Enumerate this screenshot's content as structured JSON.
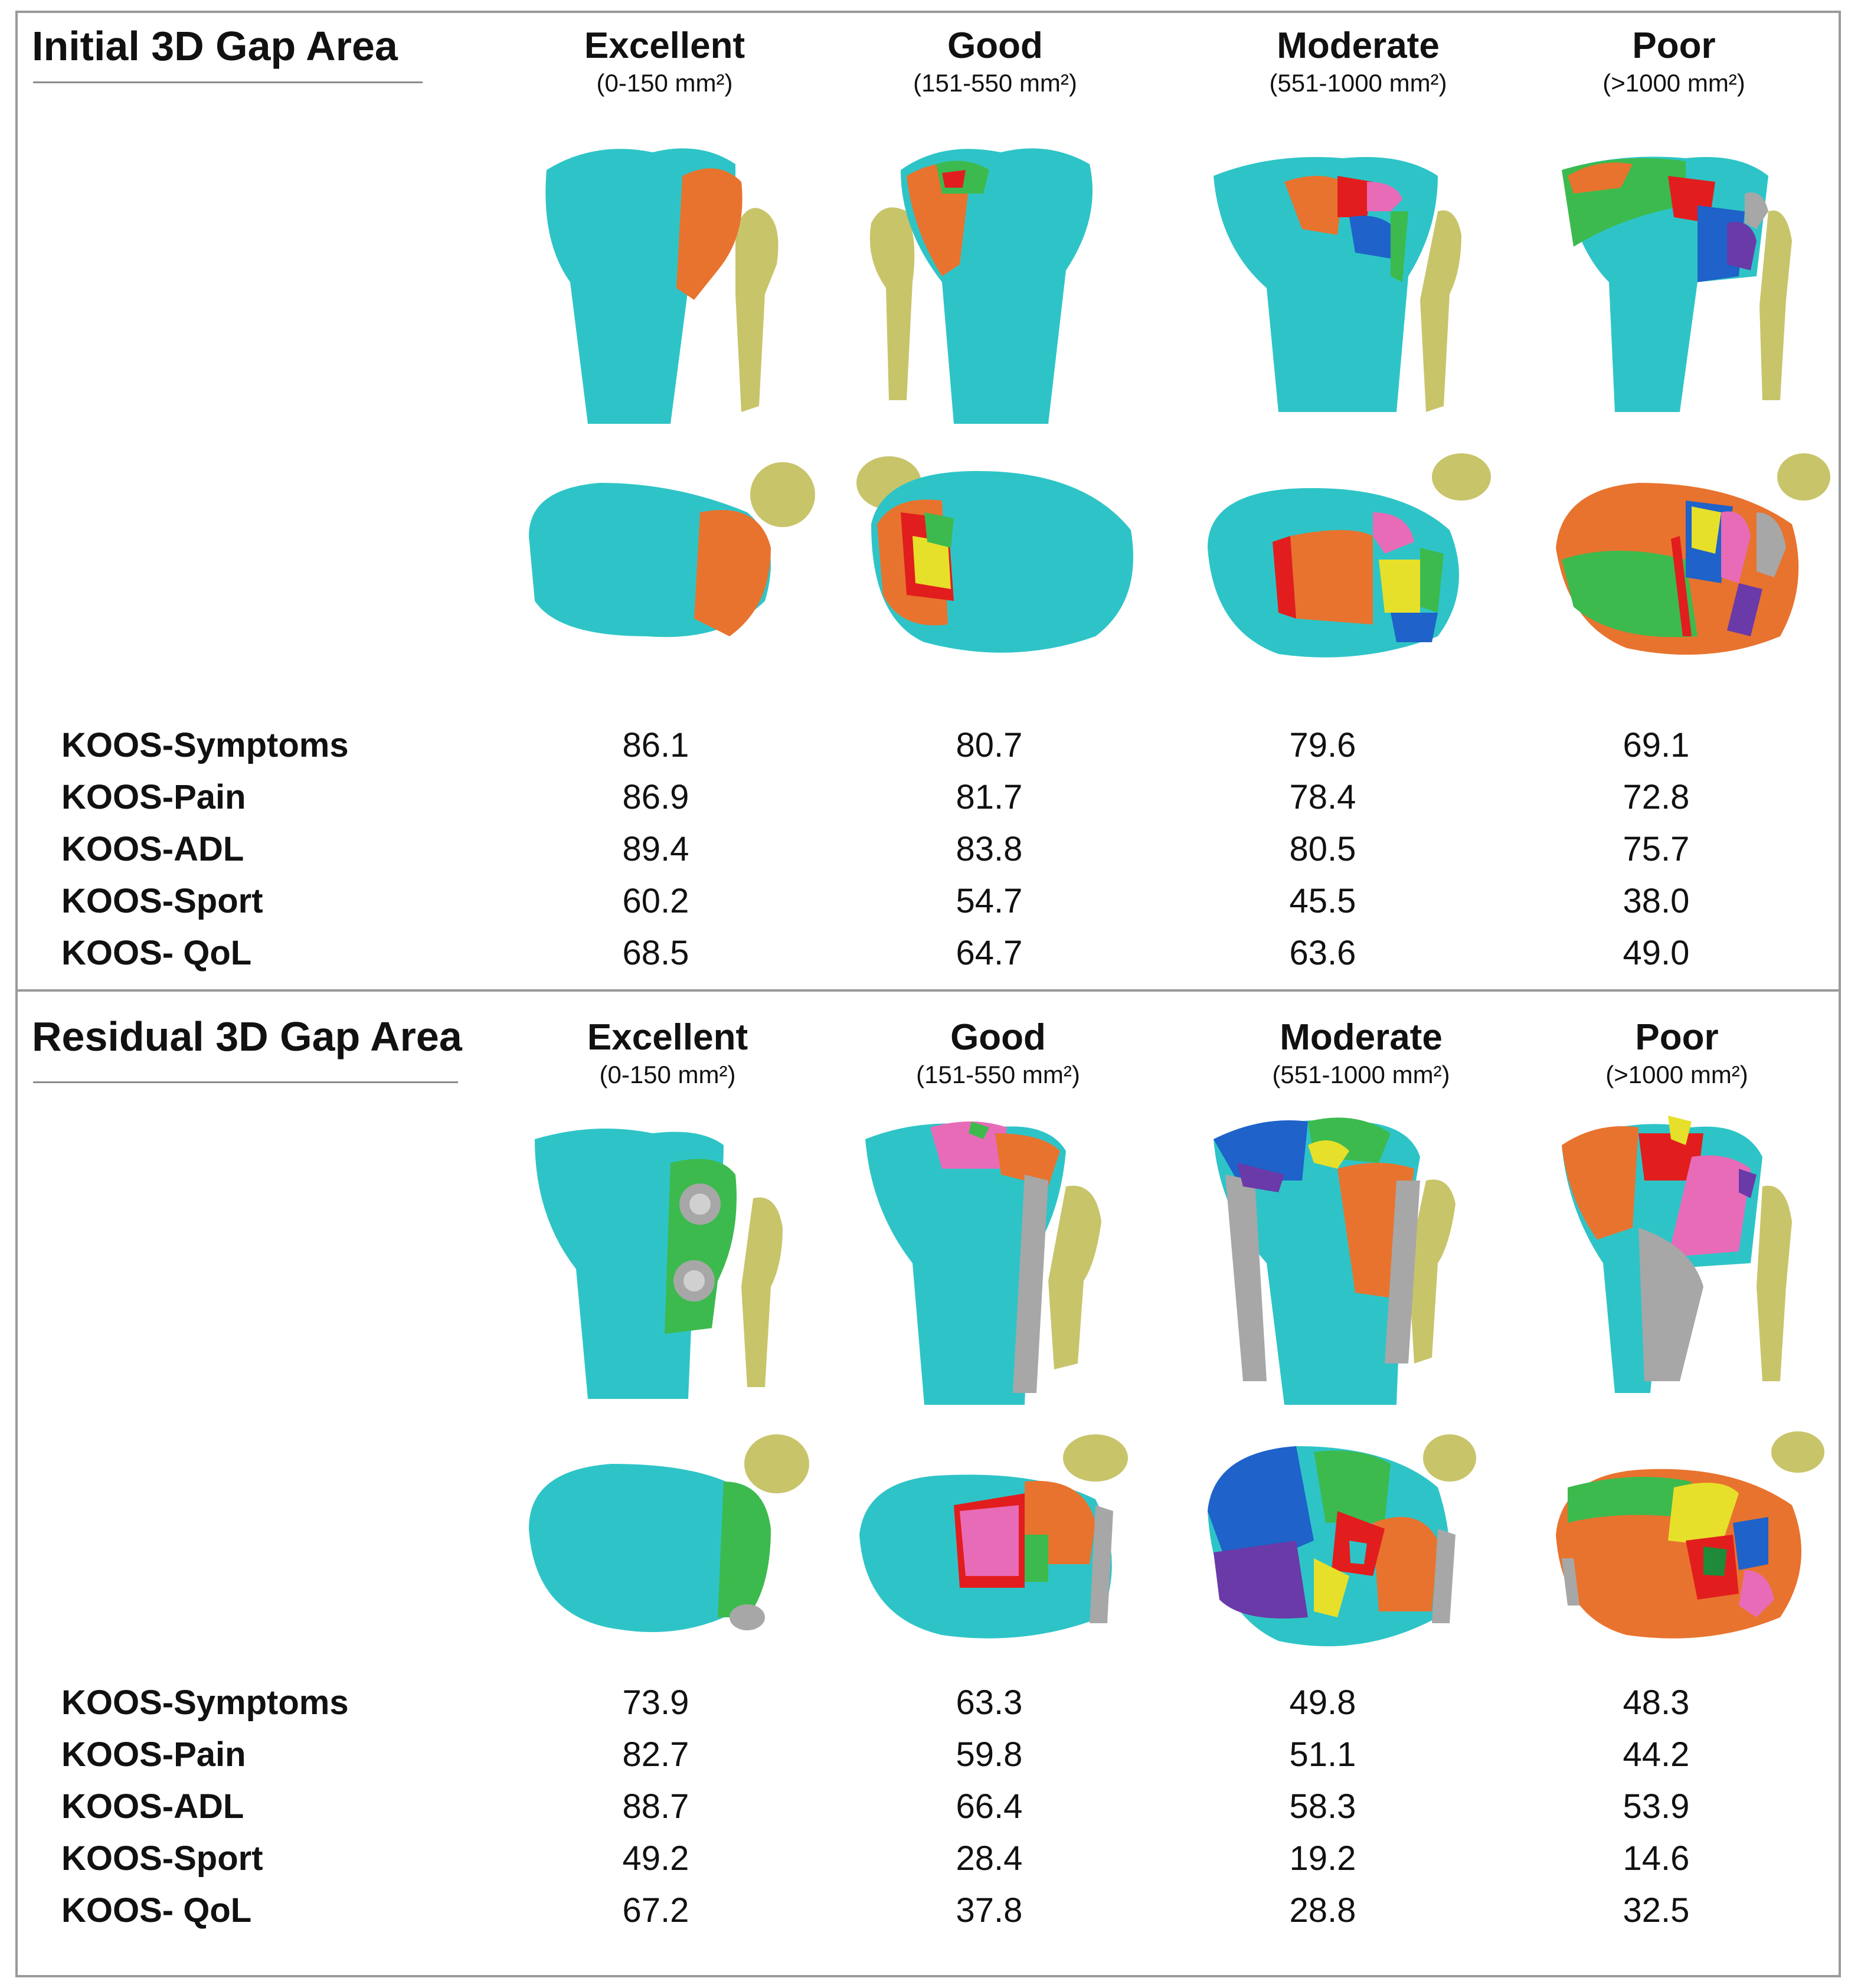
{
  "panels": [
    {
      "title": "Initial 3D Gap Area",
      "columns": [
        {
          "name": "Excellent",
          "range": "(0-150 mm²)"
        },
        {
          "name": "Good",
          "range": "(151-550 mm²)"
        },
        {
          "name": "Moderate",
          "range": "(551-1000 mm²)"
        },
        {
          "name": "Poor",
          "range": "(>1000 mm²)"
        }
      ],
      "rows": [
        {
          "label": "KOOS-Symptoms",
          "values": [
            "86.1",
            "80.7",
            "79.6",
            "69.1"
          ]
        },
        {
          "label": "KOOS-Pain",
          "values": [
            "86.9",
            "81.7",
            "78.4",
            "72.8"
          ]
        },
        {
          "label": "KOOS-ADL",
          "values": [
            "89.4",
            "83.8",
            "80.5",
            "75.7"
          ]
        },
        {
          "label": "KOOS-Sport",
          "values": [
            "60.2",
            "54.7",
            "45.5",
            "38.0"
          ]
        },
        {
          "label": "KOOS- QoL",
          "values": [
            "68.5",
            "64.7",
            "63.6",
            "49.0"
          ]
        }
      ]
    },
    {
      "title": "Residual 3D Gap Area",
      "columns": [
        {
          "name": "Excellent",
          "range": "(0-150 mm²)"
        },
        {
          "name": "Good",
          "range": "(151-550 mm²)"
        },
        {
          "name": "Moderate",
          "range": "(551-1000 mm²)"
        },
        {
          "name": "Poor",
          "range": "(>1000 mm²)"
        }
      ],
      "rows": [
        {
          "label": "KOOS-Symptoms",
          "values": [
            "73.9",
            "63.3",
            "49.8",
            "48.3"
          ]
        },
        {
          "label": "KOOS-Pain",
          "values": [
            "82.7",
            "59.8",
            "51.1",
            "44.2"
          ]
        },
        {
          "label": "KOOS-ADL",
          "values": [
            "88.7",
            "66.4",
            "58.3",
            "53.9"
          ]
        },
        {
          "label": "KOOS-Sport",
          "values": [
            "49.2",
            "28.4",
            "19.2",
            "14.6"
          ]
        },
        {
          "label": "KOOS- QoL",
          "values": [
            "67.2",
            "37.8",
            "28.8",
            "32.5"
          ]
        }
      ]
    }
  ],
  "colors": {
    "tibia": "#2ec4c7",
    "fibula": "#c8c46a",
    "fragment_orange": "#e8732e",
    "fragment_red": "#e21d1d",
    "fragment_green": "#3cba4e",
    "fragment_yellow": "#e6e02a",
    "fragment_blue": "#1f62c9",
    "fragment_pink": "#e86bb8",
    "fragment_purple": "#6a3aa8",
    "implant_gray": "#a7a7a7"
  }
}
